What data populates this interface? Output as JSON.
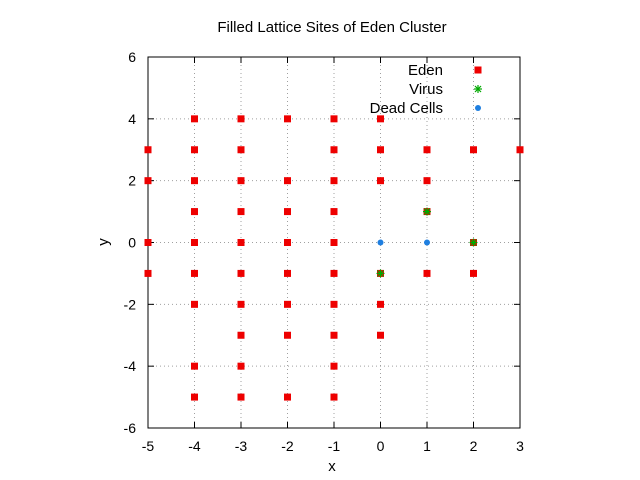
{
  "chart_data": {
    "type": "scatter",
    "title": "Filled Lattice Sites of Eden Cluster",
    "xlabel": "x",
    "ylabel": "y",
    "xlim": [
      -5,
      3
    ],
    "ylim": [
      -6,
      6
    ],
    "xticks": [
      -5,
      -4,
      -3,
      -2,
      -1,
      0,
      1,
      2,
      3
    ],
    "yticks": [
      -6,
      -4,
      -2,
      0,
      2,
      4,
      6
    ],
    "grid": true,
    "legend_position": "top-right",
    "series": [
      {
        "name": "Eden",
        "color": "#ee0000",
        "marker": "square",
        "points": [
          [
            -5,
            3
          ],
          [
            -5,
            2
          ],
          [
            -5,
            0
          ],
          [
            -5,
            -1
          ],
          [
            -4,
            4
          ],
          [
            -4,
            3
          ],
          [
            -4,
            2
          ],
          [
            -4,
            1
          ],
          [
            -4,
            0
          ],
          [
            -4,
            -1
          ],
          [
            -4,
            -2
          ],
          [
            -4,
            -4
          ],
          [
            -4,
            -5
          ],
          [
            -3,
            4
          ],
          [
            -3,
            3
          ],
          [
            -3,
            2
          ],
          [
            -3,
            1
          ],
          [
            -3,
            0
          ],
          [
            -3,
            -1
          ],
          [
            -3,
            -2
          ],
          [
            -3,
            -3
          ],
          [
            -3,
            -4
          ],
          [
            -3,
            -5
          ],
          [
            -2,
            4
          ],
          [
            -2,
            2
          ],
          [
            -2,
            1
          ],
          [
            -2,
            0
          ],
          [
            -2,
            -1
          ],
          [
            -2,
            -2
          ],
          [
            -2,
            -3
          ],
          [
            -2,
            -5
          ],
          [
            -1,
            4
          ],
          [
            -1,
            3
          ],
          [
            -1,
            2
          ],
          [
            -1,
            1
          ],
          [
            -1,
            0
          ],
          [
            -1,
            -1
          ],
          [
            -1,
            -2
          ],
          [
            -1,
            -3
          ],
          [
            -1,
            -4
          ],
          [
            -1,
            -5
          ],
          [
            0,
            4
          ],
          [
            0,
            3
          ],
          [
            0,
            2
          ],
          [
            0,
            -1
          ],
          [
            0,
            -2
          ],
          [
            0,
            -3
          ],
          [
            1,
            3
          ],
          [
            1,
            2
          ],
          [
            1,
            1
          ],
          [
            1,
            -1
          ],
          [
            2,
            3
          ],
          [
            2,
            0
          ],
          [
            2,
            -1
          ],
          [
            3,
            3
          ]
        ]
      },
      {
        "name": "Virus",
        "color": "#00aa00",
        "marker": "star",
        "points": [
          [
            0,
            -1
          ],
          [
            1,
            1
          ],
          [
            2,
            0
          ]
        ]
      },
      {
        "name": "Dead Cells",
        "color": "#1f7fe0",
        "marker": "circle",
        "points": [
          [
            0,
            0
          ],
          [
            1,
            0
          ]
        ]
      }
    ]
  }
}
